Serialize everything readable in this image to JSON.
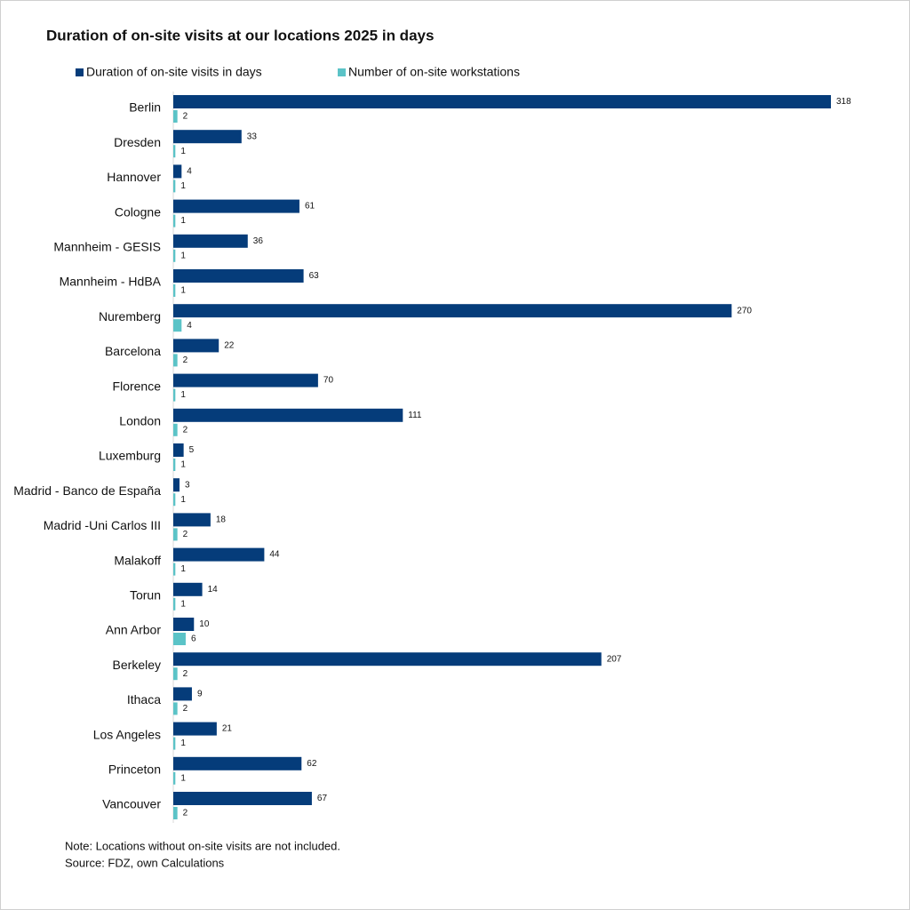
{
  "chart_data": {
    "type": "bar",
    "orientation": "horizontal",
    "title": "Duration of on-site visits at our locations 2025 in days",
    "categories": [
      "Berlin",
      "Dresden",
      "Hannover",
      "Cologne",
      "Mannheim - GESIS",
      "Mannheim - HdBA",
      "Nuremberg",
      "Barcelona",
      "Florence",
      "London",
      "Luxemburg",
      "Madrid - Banco de España",
      "Madrid -Uni Carlos III",
      "Malakoff",
      "Torun",
      "Ann Arbor",
      "Berkeley",
      "Ithaca",
      "Los Angeles",
      "Princeton",
      "Vancouver"
    ],
    "series": [
      {
        "name": "Duration of on-site visits in days",
        "color": "#053c7a",
        "values": [
          318,
          33,
          4,
          61,
          36,
          63,
          270,
          22,
          70,
          111,
          5,
          3,
          18,
          44,
          14,
          10,
          207,
          9,
          21,
          62,
          67
        ]
      },
      {
        "name": "Number of on-site workstations",
        "color": "#5bc3c7",
        "values": [
          2,
          1,
          1,
          1,
          1,
          1,
          4,
          2,
          1,
          2,
          1,
          1,
          2,
          1,
          1,
          6,
          2,
          2,
          1,
          1,
          2
        ]
      }
    ],
    "notes": [
      "Note: Locations without on-site visits are not included.",
      "Source: FDZ, own Calculations"
    ]
  }
}
